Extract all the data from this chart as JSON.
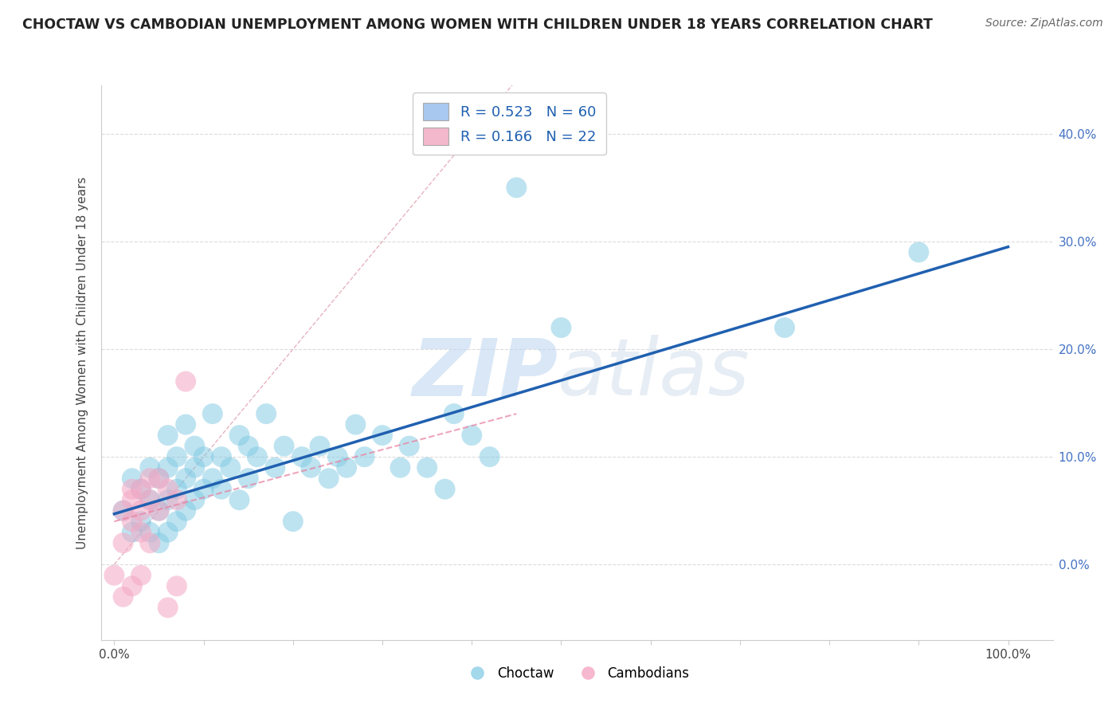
{
  "title": "CHOCTAW VS CAMBODIAN UNEMPLOYMENT AMONG WOMEN WITH CHILDREN UNDER 18 YEARS CORRELATION CHART",
  "source": "Source: ZipAtlas.com",
  "ylabel": "Unemployment Among Women with Children Under 18 years",
  "watermark_zip": "ZIP",
  "watermark_atlas": "atlas",
  "legend_entries": [
    {
      "label": "R = 0.523   N = 60",
      "color": "#a8c8f0"
    },
    {
      "label": "R = 0.166   N = 22",
      "color": "#f4b8cc"
    }
  ],
  "choctaw_legend": "Choctaw",
  "cambodian_legend": "Cambodians",
  "xlim": [
    -0.015,
    1.05
  ],
  "ylim": [
    -0.07,
    0.445
  ],
  "xticks": [
    0.0,
    0.1,
    0.2,
    0.3,
    0.4,
    0.5,
    0.6,
    0.7,
    0.8,
    0.9,
    1.0
  ],
  "yticks": [
    0.0,
    0.1,
    0.2,
    0.3,
    0.4
  ],
  "ytick_labels": [
    "0.0%",
    "10.0%",
    "20.0%",
    "30.0%",
    "40.0%"
  ],
  "xtick_labels": [
    "0.0%",
    "",
    "",
    "",
    "",
    "",
    "",
    "",
    "",
    "",
    "100.0%"
  ],
  "choctaw_color": "#7ec8e3",
  "choctaw_edge": "#5aafcf",
  "cambodian_color": "#f4a7c3",
  "cambodian_edge": "#e07090",
  "trend_blue_color": "#2060b0",
  "trend_pink_color": "#e87fa0",
  "ref_line_color": "#cccccc",
  "choctaw_x": [
    0.01,
    0.02,
    0.02,
    0.03,
    0.03,
    0.04,
    0.04,
    0.04,
    0.05,
    0.05,
    0.05,
    0.06,
    0.06,
    0.06,
    0.06,
    0.07,
    0.07,
    0.07,
    0.08,
    0.08,
    0.08,
    0.09,
    0.09,
    0.09,
    0.1,
    0.1,
    0.11,
    0.11,
    0.12,
    0.12,
    0.13,
    0.14,
    0.14,
    0.15,
    0.15,
    0.16,
    0.17,
    0.18,
    0.19,
    0.2,
    0.21,
    0.22,
    0.23,
    0.24,
    0.25,
    0.26,
    0.27,
    0.28,
    0.3,
    0.32,
    0.33,
    0.35,
    0.37,
    0.38,
    0.4,
    0.42,
    0.45,
    0.5,
    0.75,
    0.9
  ],
  "choctaw_y": [
    0.05,
    0.03,
    0.08,
    0.04,
    0.07,
    0.03,
    0.06,
    0.09,
    0.02,
    0.05,
    0.08,
    0.03,
    0.06,
    0.09,
    0.12,
    0.04,
    0.07,
    0.1,
    0.05,
    0.08,
    0.13,
    0.06,
    0.09,
    0.11,
    0.07,
    0.1,
    0.08,
    0.14,
    0.07,
    0.1,
    0.09,
    0.06,
    0.12,
    0.08,
    0.11,
    0.1,
    0.14,
    0.09,
    0.11,
    0.04,
    0.1,
    0.09,
    0.11,
    0.08,
    0.1,
    0.09,
    0.13,
    0.1,
    0.12,
    0.09,
    0.11,
    0.09,
    0.07,
    0.14,
    0.12,
    0.1,
    0.35,
    0.22,
    0.22,
    0.29
  ],
  "cambodian_x": [
    0.0,
    0.01,
    0.01,
    0.01,
    0.02,
    0.02,
    0.02,
    0.02,
    0.03,
    0.03,
    0.03,
    0.03,
    0.04,
    0.04,
    0.04,
    0.05,
    0.05,
    0.06,
    0.06,
    0.07,
    0.07,
    0.08
  ],
  "cambodian_y": [
    -0.01,
    0.05,
    -0.03,
    0.02,
    0.06,
    -0.02,
    0.04,
    0.07,
    0.03,
    0.07,
    -0.01,
    0.05,
    0.06,
    0.02,
    0.08,
    0.05,
    0.08,
    0.07,
    -0.04,
    0.06,
    -0.02,
    0.17
  ],
  "blue_trend_x0": 0.0,
  "blue_trend_y0": 0.047,
  "blue_trend_x1": 1.0,
  "blue_trend_y1": 0.295,
  "pink_trend_x0": 0.0,
  "pink_trend_y0": 0.04,
  "pink_trend_x1": 0.45,
  "pink_trend_y1": 0.14,
  "background_color": "#ffffff",
  "grid_color": "#cccccc"
}
